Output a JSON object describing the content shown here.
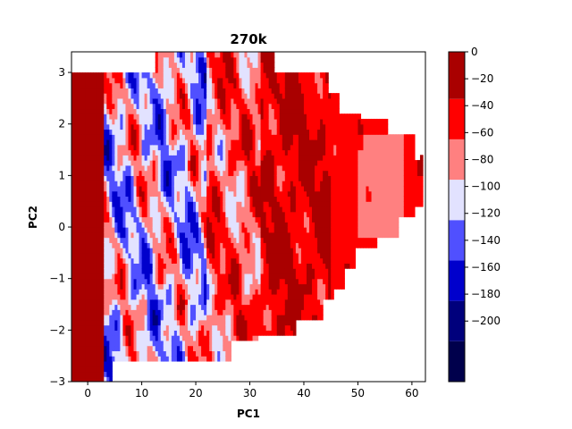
{
  "chart_data": {
    "type": "heatmap",
    "title": "270k",
    "xlabel": "PC1",
    "ylabel": "PC2",
    "xlim": [
      -3,
      62.5
    ],
    "ylim": [
      -3,
      3.4
    ],
    "x_ticks": [
      {
        "value": 0,
        "label": "0"
      },
      {
        "value": 10,
        "label": "10"
      },
      {
        "value": 20,
        "label": "20"
      },
      {
        "value": 30,
        "label": "30"
      },
      {
        "value": 40,
        "label": "40"
      },
      {
        "value": 50,
        "label": "50"
      },
      {
        "value": 60,
        "label": "60"
      }
    ],
    "y_ticks": [
      {
        "value": -3,
        "label": "−3"
      },
      {
        "value": -2,
        "label": "−2"
      },
      {
        "value": -1,
        "label": "−1"
      },
      {
        "value": 0,
        "label": "0"
      },
      {
        "value": 1,
        "label": "1"
      },
      {
        "value": 2,
        "label": "2"
      },
      {
        "value": 3,
        "label": "3"
      }
    ],
    "colorbar": {
      "range": [
        -245,
        0
      ],
      "ticks": [
        {
          "value": 0,
          "label": "0"
        },
        {
          "value": -20,
          "label": "−20"
        },
        {
          "value": -40,
          "label": "−40"
        },
        {
          "value": -60,
          "label": "−60"
        },
        {
          "value": -80,
          "label": "−80"
        },
        {
          "value": -100,
          "label": "−100"
        },
        {
          "value": -120,
          "label": "−120"
        },
        {
          "value": -140,
          "label": "−140"
        },
        {
          "value": -160,
          "label": "−160"
        },
        {
          "value": -180,
          "label": "−180"
        },
        {
          "value": -200,
          "label": "−200"
        }
      ],
      "levels": [
        {
          "from": -245,
          "to": -215,
          "color": "#00004c"
        },
        {
          "from": -215,
          "to": -185,
          "color": "#00007c"
        },
        {
          "from": -185,
          "to": -155,
          "color": "#0000cc"
        },
        {
          "from": -155,
          "to": -125,
          "color": "#5050ff"
        },
        {
          "from": -125,
          "to": -95,
          "color": "#e2e2ff"
        },
        {
          "from": -95,
          "to": -65,
          "color": "#ff8080"
        },
        {
          "from": -65,
          "to": -35,
          "color": "#ff0000"
        },
        {
          "from": -35,
          "to": 0,
          "color": "#a90000"
        }
      ]
    },
    "colormap": "seismic",
    "grid": false
  }
}
